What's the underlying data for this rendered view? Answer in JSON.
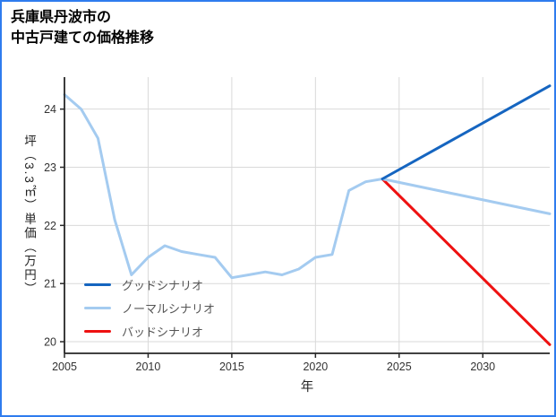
{
  "page": {
    "border_color": "#2f7cee",
    "background": "#ffffff",
    "axis_color": "#262626",
    "grid_color": "#d9d9d9",
    "tick_label_color": "#333333"
  },
  "title": {
    "line1": "兵庫県丹波市の",
    "line2": "中古戸建ての価格推移"
  },
  "chart_data": {
    "type": "line",
    "title": "兵庫県丹波市の中古戸建ての価格推移",
    "xlabel": "年",
    "ylabel": "坪（3.3㎡）単価（万円）",
    "xlim": [
      2005,
      2034
    ],
    "ylim": [
      19.8,
      24.55
    ],
    "x_ticks": [
      2005,
      2010,
      2015,
      2020,
      2025,
      2030
    ],
    "y_ticks": [
      20,
      21,
      22,
      23,
      24
    ],
    "grid": true,
    "legend_position": "lower-left",
    "series": [
      {
        "key": "good-scenario",
        "name": "グッドシナリオ",
        "color": "#1565c0",
        "width": 3,
        "x": [
          2024,
          2034
        ],
        "y": [
          22.8,
          24.4
        ]
      },
      {
        "key": "normal-scenario",
        "name": "ノーマルシナリオ",
        "color": "#a4cbf0",
        "width": 3,
        "x": [
          2005,
          2006,
          2007,
          2008,
          2009,
          2010,
          2011,
          2012,
          2013,
          2014,
          2015,
          2016,
          2017,
          2018,
          2019,
          2020,
          2021,
          2022,
          2023,
          2024,
          2034
        ],
        "y": [
          24.25,
          24.0,
          23.5,
          22.1,
          21.15,
          21.45,
          21.65,
          21.55,
          21.5,
          21.45,
          21.1,
          21.15,
          21.2,
          21.15,
          21.25,
          21.45,
          21.5,
          22.6,
          22.75,
          22.8,
          22.2
        ]
      },
      {
        "key": "bad-scenario",
        "name": "バッドシナリオ",
        "color": "#ee1111",
        "width": 3,
        "x": [
          2024,
          2034
        ],
        "y": [
          22.8,
          19.95
        ]
      }
    ]
  }
}
